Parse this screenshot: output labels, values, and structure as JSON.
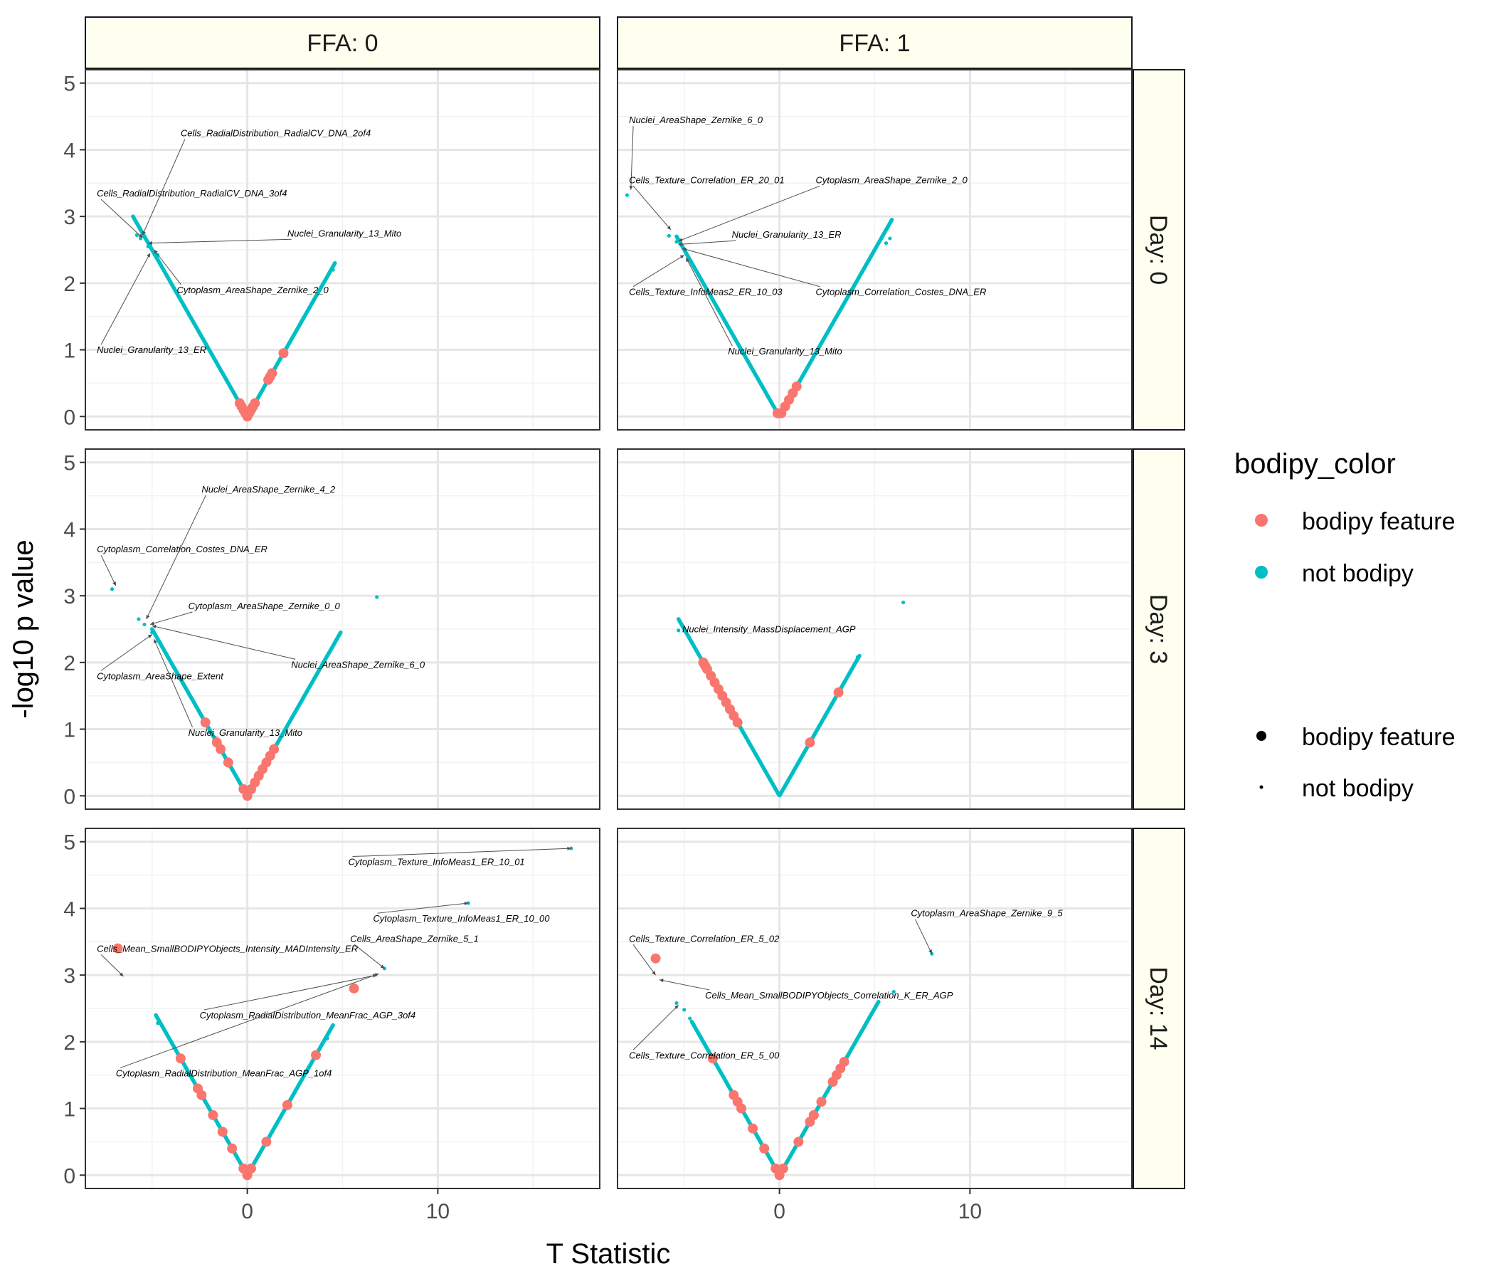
{
  "chart_data": {
    "type": "scatter",
    "xlabel": "T Statistic",
    "ylabel": "-log10 p value",
    "xlim": [
      -8.5,
      18.5
    ],
    "ylim": [
      -0.2,
      5.2
    ],
    "x_ticks": [
      0,
      10
    ],
    "y_ticks": [
      0,
      1,
      2,
      3,
      4,
      5
    ],
    "grid": true,
    "legend_placement": "right",
    "col_strip_labels": [
      "FFA: 0",
      "FFA: 1"
    ],
    "row_strip_labels": [
      "Day: 0",
      "Day: 3",
      "Day: 14"
    ],
    "legend": {
      "title": "bodipy_color",
      "color_entries": [
        "bodipy feature",
        "not bodipy"
      ],
      "size_entries": [
        "bodipy feature",
        "not bodipy"
      ]
    },
    "series_colors": {
      "bodipy feature": "#f8766d",
      "not bodipy": "#00bfc4"
    },
    "panels": [
      {
        "ffa": "FFA: 0",
        "day": "Day: 0",
        "curve": {
          "xmin": -6,
          "xmax": 4.6
        },
        "bodipy_x": [
          -0.4,
          -0.3,
          -0.2,
          -0.1,
          0,
          0.1,
          0.2,
          0.3,
          0.4,
          1.1,
          1.2,
          1.3,
          1.9
        ],
        "outliers": [
          {
            "x": -5.8,
            "y": 2.72
          },
          {
            "x": -5.6,
            "y": 2.67
          },
          {
            "x": -5.2,
            "y": 2.55
          },
          {
            "x": -4.7,
            "y": 2.42
          },
          {
            "x": 4.5,
            "y": 2.2
          }
        ],
        "labels": [
          {
            "text": "Cells_RadialDistribution_RadialCV_DNA_2of4",
            "tx": -3.5,
            "ty": 4.2,
            "px": -5.5,
            "py": 2.72
          },
          {
            "text": "Cells_RadialDistribution_RadialCV_DNA_3of4",
            "tx": -7.9,
            "ty": 3.3,
            "px": -5.5,
            "py": 2.68
          },
          {
            "text": "Nuclei_Granularity_13_Mito",
            "tx": 2.1,
            "ty": 2.7,
            "px": -5.2,
            "py": 2.6
          },
          {
            "text": "Cytoplasm_AreaShape_Zernike_2_0",
            "tx": -3.7,
            "ty": 1.85,
            "px": -4.9,
            "py": 2.5
          },
          {
            "text": "Nuclei_Granularity_13_ER",
            "tx": -7.9,
            "ty": 0.95,
            "px": -5.1,
            "py": 2.45
          }
        ]
      },
      {
        "ffa": "FFA: 1",
        "day": "Day: 0",
        "curve": {
          "xmin": -5.4,
          "xmax": 5.9
        },
        "bodipy_x": [
          -0.1,
          0.1,
          0.3,
          0.5,
          0.7,
          0.9
        ],
        "outliers": [
          {
            "x": -8,
            "y": 3.32
          },
          {
            "x": -5.8,
            "y": 2.71
          },
          {
            "x": -5.4,
            "y": 2.62
          },
          {
            "x": -5,
            "y": 2.5
          },
          {
            "x": 5.6,
            "y": 2.6
          },
          {
            "x": 5.8,
            "y": 2.67
          }
        ],
        "labels": [
          {
            "text": "Nuclei_AreaShape_Zernike_6_0",
            "tx": -7.9,
            "ty": 4.4,
            "px": -7.8,
            "py": 3.4
          },
          {
            "text": "Cells_Texture_Correlation_ER_20_01",
            "tx": -7.9,
            "ty": 3.5,
            "px": -5.7,
            "py": 2.8
          },
          {
            "text": "Cytoplasm_AreaShape_Zernike_2_0",
            "tx": 1.9,
            "ty": 3.5,
            "px": -5.3,
            "py": 2.63
          },
          {
            "text": "Nuclei_Granularity_13_ER",
            "tx": -2.5,
            "ty": 2.68,
            "px": -5.3,
            "py": 2.58
          },
          {
            "text": "Cytoplasm_Correlation_Costes_DNA_ER",
            "tx": 1.9,
            "ty": 1.82,
            "px": -5.1,
            "py": 2.52
          },
          {
            "text": "Cells_Texture_InfoMeas2_ER_10_03",
            "tx": -7.9,
            "ty": 1.82,
            "px": -5,
            "py": 2.42
          },
          {
            "text": "Nuclei_Granularity_13_Mito",
            "tx": -2.7,
            "ty": 0.93,
            "px": -4.9,
            "py": 2.38
          }
        ]
      },
      {
        "ffa": "FFA: 0",
        "day": "Day: 3",
        "curve": {
          "xmin": -5,
          "xmax": 4.9
        },
        "bodipy_x": [
          -2.2,
          -1.6,
          -1.4,
          -1,
          -0.2,
          0,
          0.2,
          0.4,
          0.6,
          0.8,
          1,
          1.2,
          1.4
        ],
        "outliers": [
          {
            "x": -7.1,
            "y": 3.1
          },
          {
            "x": -5.7,
            "y": 2.65
          },
          {
            "x": -5.4,
            "y": 2.57
          },
          {
            "x": -5,
            "y": 2.45
          },
          {
            "x": 6.8,
            "y": 2.98
          }
        ],
        "labels": [
          {
            "text": "Nuclei_AreaShape_Zernike_4_2",
            "tx": -2.4,
            "ty": 4.55,
            "px": -5.3,
            "py": 2.65
          },
          {
            "text": "Cytoplasm_Correlation_Costes_DNA_ER",
            "tx": -7.9,
            "ty": 3.65,
            "px": -6.9,
            "py": 3.15
          },
          {
            "text": "Cytoplasm_AreaShape_Zernike_0_0",
            "tx": -3.1,
            "ty": 2.8,
            "px": -5.1,
            "py": 2.57
          },
          {
            "text": "Nuclei_AreaShape_Zernike_6_0",
            "tx": 2.3,
            "ty": 1.92,
            "px": -5,
            "py": 2.55
          },
          {
            "text": "Cytoplasm_AreaShape_Extent",
            "tx": -7.9,
            "ty": 1.75,
            "px": -5,
            "py": 2.42
          },
          {
            "text": "Nuclei_Granularity_13_Mito",
            "tx": -3.1,
            "ty": 0.9,
            "px": -4.9,
            "py": 2.35
          }
        ]
      },
      {
        "ffa": "FFA: 1",
        "day": "Day: 3",
        "curve": {
          "xmin": -5.3,
          "xmax": 4.2
        },
        "bodipy_x": [
          -4,
          -3.9,
          -3.8,
          -3.6,
          -3.4,
          -3.2,
          -3,
          -2.8,
          -2.6,
          -2.4,
          -2.2,
          1.6,
          3.1
        ],
        "outliers": [
          {
            "x": -5.3,
            "y": 2.48
          },
          {
            "x": 6.5,
            "y": 2.9
          },
          {
            "x": 4.1,
            "y": 2.08
          }
        ],
        "labels": [
          {
            "text": "Nuclei_Intensity_MassDisplacement_AGP",
            "tx": -5.1,
            "ty": 2.45,
            "px": -5.2,
            "py": 2.45
          }
        ]
      },
      {
        "ffa": "FFA: 0",
        "day": "Day: 14",
        "curve": {
          "xmin": -4.8,
          "xmax": 4.5
        },
        "bodipy_x": [
          -6.8,
          -3.5,
          -2.6,
          -2.4,
          -1.8,
          -1.3,
          -0.8,
          -0.2,
          0,
          0.2,
          1,
          2.1,
          3.6,
          5.6
        ],
        "outliers": [
          {
            "x": -4.7,
            "y": 2.28
          },
          {
            "x": 4.2,
            "y": 2.05
          },
          {
            "x": 7.2,
            "y": 3.1
          },
          {
            "x": 11.6,
            "y": 4.08
          },
          {
            "x": 17,
            "y": 4.9
          }
        ],
        "labels": [
          {
            "text": "Cytoplasm_Texture_InfoMeas1_ER_10_01",
            "tx": 5.3,
            "ty": 4.65,
            "px": 17,
            "py": 4.9
          },
          {
            "text": "Cytoplasm_Texture_InfoMeas1_ER_10_00",
            "tx": 6.6,
            "ty": 3.8,
            "px": 11.6,
            "py": 4.08
          },
          {
            "text": "Cells_AreaShape_Zernike_5_1",
            "tx": 5.4,
            "ty": 3.5,
            "px": 7.2,
            "py": 3.1
          },
          {
            "text": "Cells_Mean_SmallBODIPYObjects_Intensity_MADIntensity_ER",
            "tx": -7.9,
            "ty": 3.35,
            "px": -6.5,
            "py": 2.98
          },
          {
            "text": "Cytoplasm_RadialDistribution_MeanFrac_AGP_3of4",
            "tx": -2.5,
            "ty": 2.35,
            "px": 6.8,
            "py": 3
          },
          {
            "text": "Cytoplasm_RadialDistribution_MeanFrac_AGP_1of4",
            "tx": -6.9,
            "ty": 1.48,
            "px": 6.9,
            "py": 3.02
          }
        ]
      },
      {
        "ffa": "FFA: 1",
        "day": "Day: 14",
        "curve": {
          "xmin": -4.6,
          "xmax": 5.2
        },
        "bodipy_x": [
          -6.5,
          -3.5,
          -2.4,
          -2.2,
          -2,
          -1.4,
          -0.8,
          -0.2,
          0,
          0.2,
          1,
          1.6,
          1.8,
          2.2,
          2.8,
          3,
          3.2,
          3.4
        ],
        "outliers": [
          {
            "x": -5.4,
            "y": 2.58
          },
          {
            "x": -5,
            "y": 2.48
          },
          {
            "x": -4.7,
            "y": 2.35
          },
          {
            "x": 6,
            "y": 2.75
          },
          {
            "x": 8,
            "y": 3.32
          }
        ],
        "labels": [
          {
            "text": "Cells_Texture_Correlation_ER_5_02",
            "tx": -7.9,
            "ty": 3.5,
            "px": -6.5,
            "py": 3
          },
          {
            "text": "Cells_Mean_SmallBODIPYObjects_Correlation_K_ER_AGP",
            "tx": -3.9,
            "ty": 2.65,
            "px": -6.3,
            "py": 2.93
          },
          {
            "text": "Cells_Texture_Correlation_ER_5_00",
            "tx": -7.9,
            "ty": 1.75,
            "px": -5.3,
            "py": 2.55
          },
          {
            "text": "Cytoplasm_AreaShape_Zernike_9_5",
            "tx": 6.9,
            "ty": 3.88,
            "px": 8,
            "py": 3.32
          }
        ]
      }
    ]
  }
}
